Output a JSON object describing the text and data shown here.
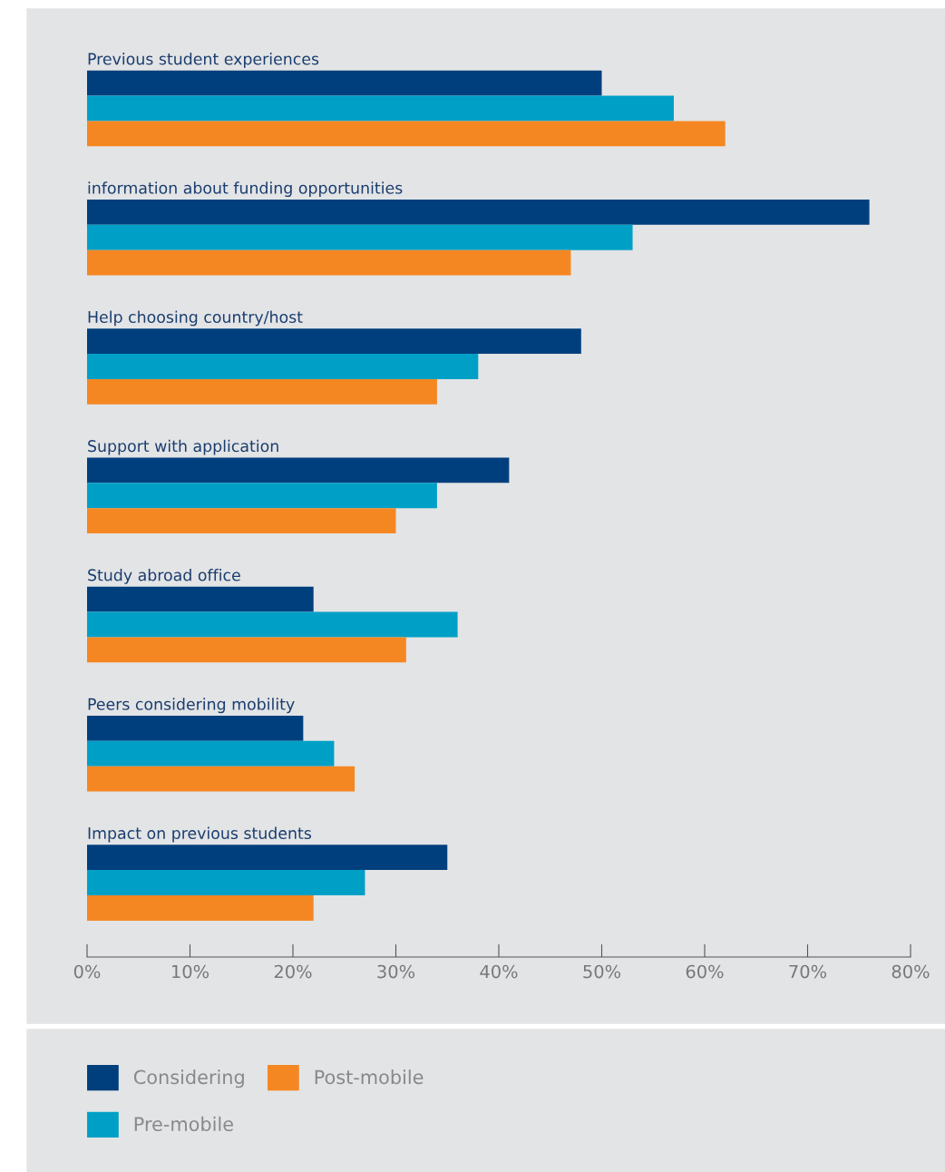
{
  "chart_data": {
    "type": "bar",
    "orientation": "horizontal",
    "categories": [
      "Previous student experiences",
      "information about funding opportunities",
      "Help choosing country/host",
      "Support with application",
      "Study abroad office",
      "Peers considering mobility",
      "Impact on previous students"
    ],
    "series": [
      {
        "name": "Considering",
        "color": "#003f7d",
        "values": [
          50,
          76,
          48,
          41,
          22,
          21,
          35
        ]
      },
      {
        "name": "Pre-mobile",
        "color": "#00a0c6",
        "values": [
          57,
          53,
          38,
          34,
          36,
          24,
          27
        ]
      },
      {
        "name": "Post-mobile",
        "color": "#f58723",
        "values": [
          62,
          47,
          34,
          30,
          31,
          26,
          22
        ]
      }
    ],
    "xlim": [
      0,
      80
    ],
    "xticks": [
      {
        "value": 0,
        "label": "0%"
      },
      {
        "value": 10,
        "label": "10%"
      },
      {
        "value": 20,
        "label": "20%"
      },
      {
        "value": 30,
        "label": "30%"
      },
      {
        "value": 40,
        "label": "40%"
      },
      {
        "value": 50,
        "label": "50%"
      },
      {
        "value": 60,
        "label": "60%"
      },
      {
        "value": 70,
        "label": "70%"
      },
      {
        "value": 80,
        "label": "80%"
      }
    ],
    "tick_labels": "x",
    "grid": false,
    "legend": "bottom"
  }
}
